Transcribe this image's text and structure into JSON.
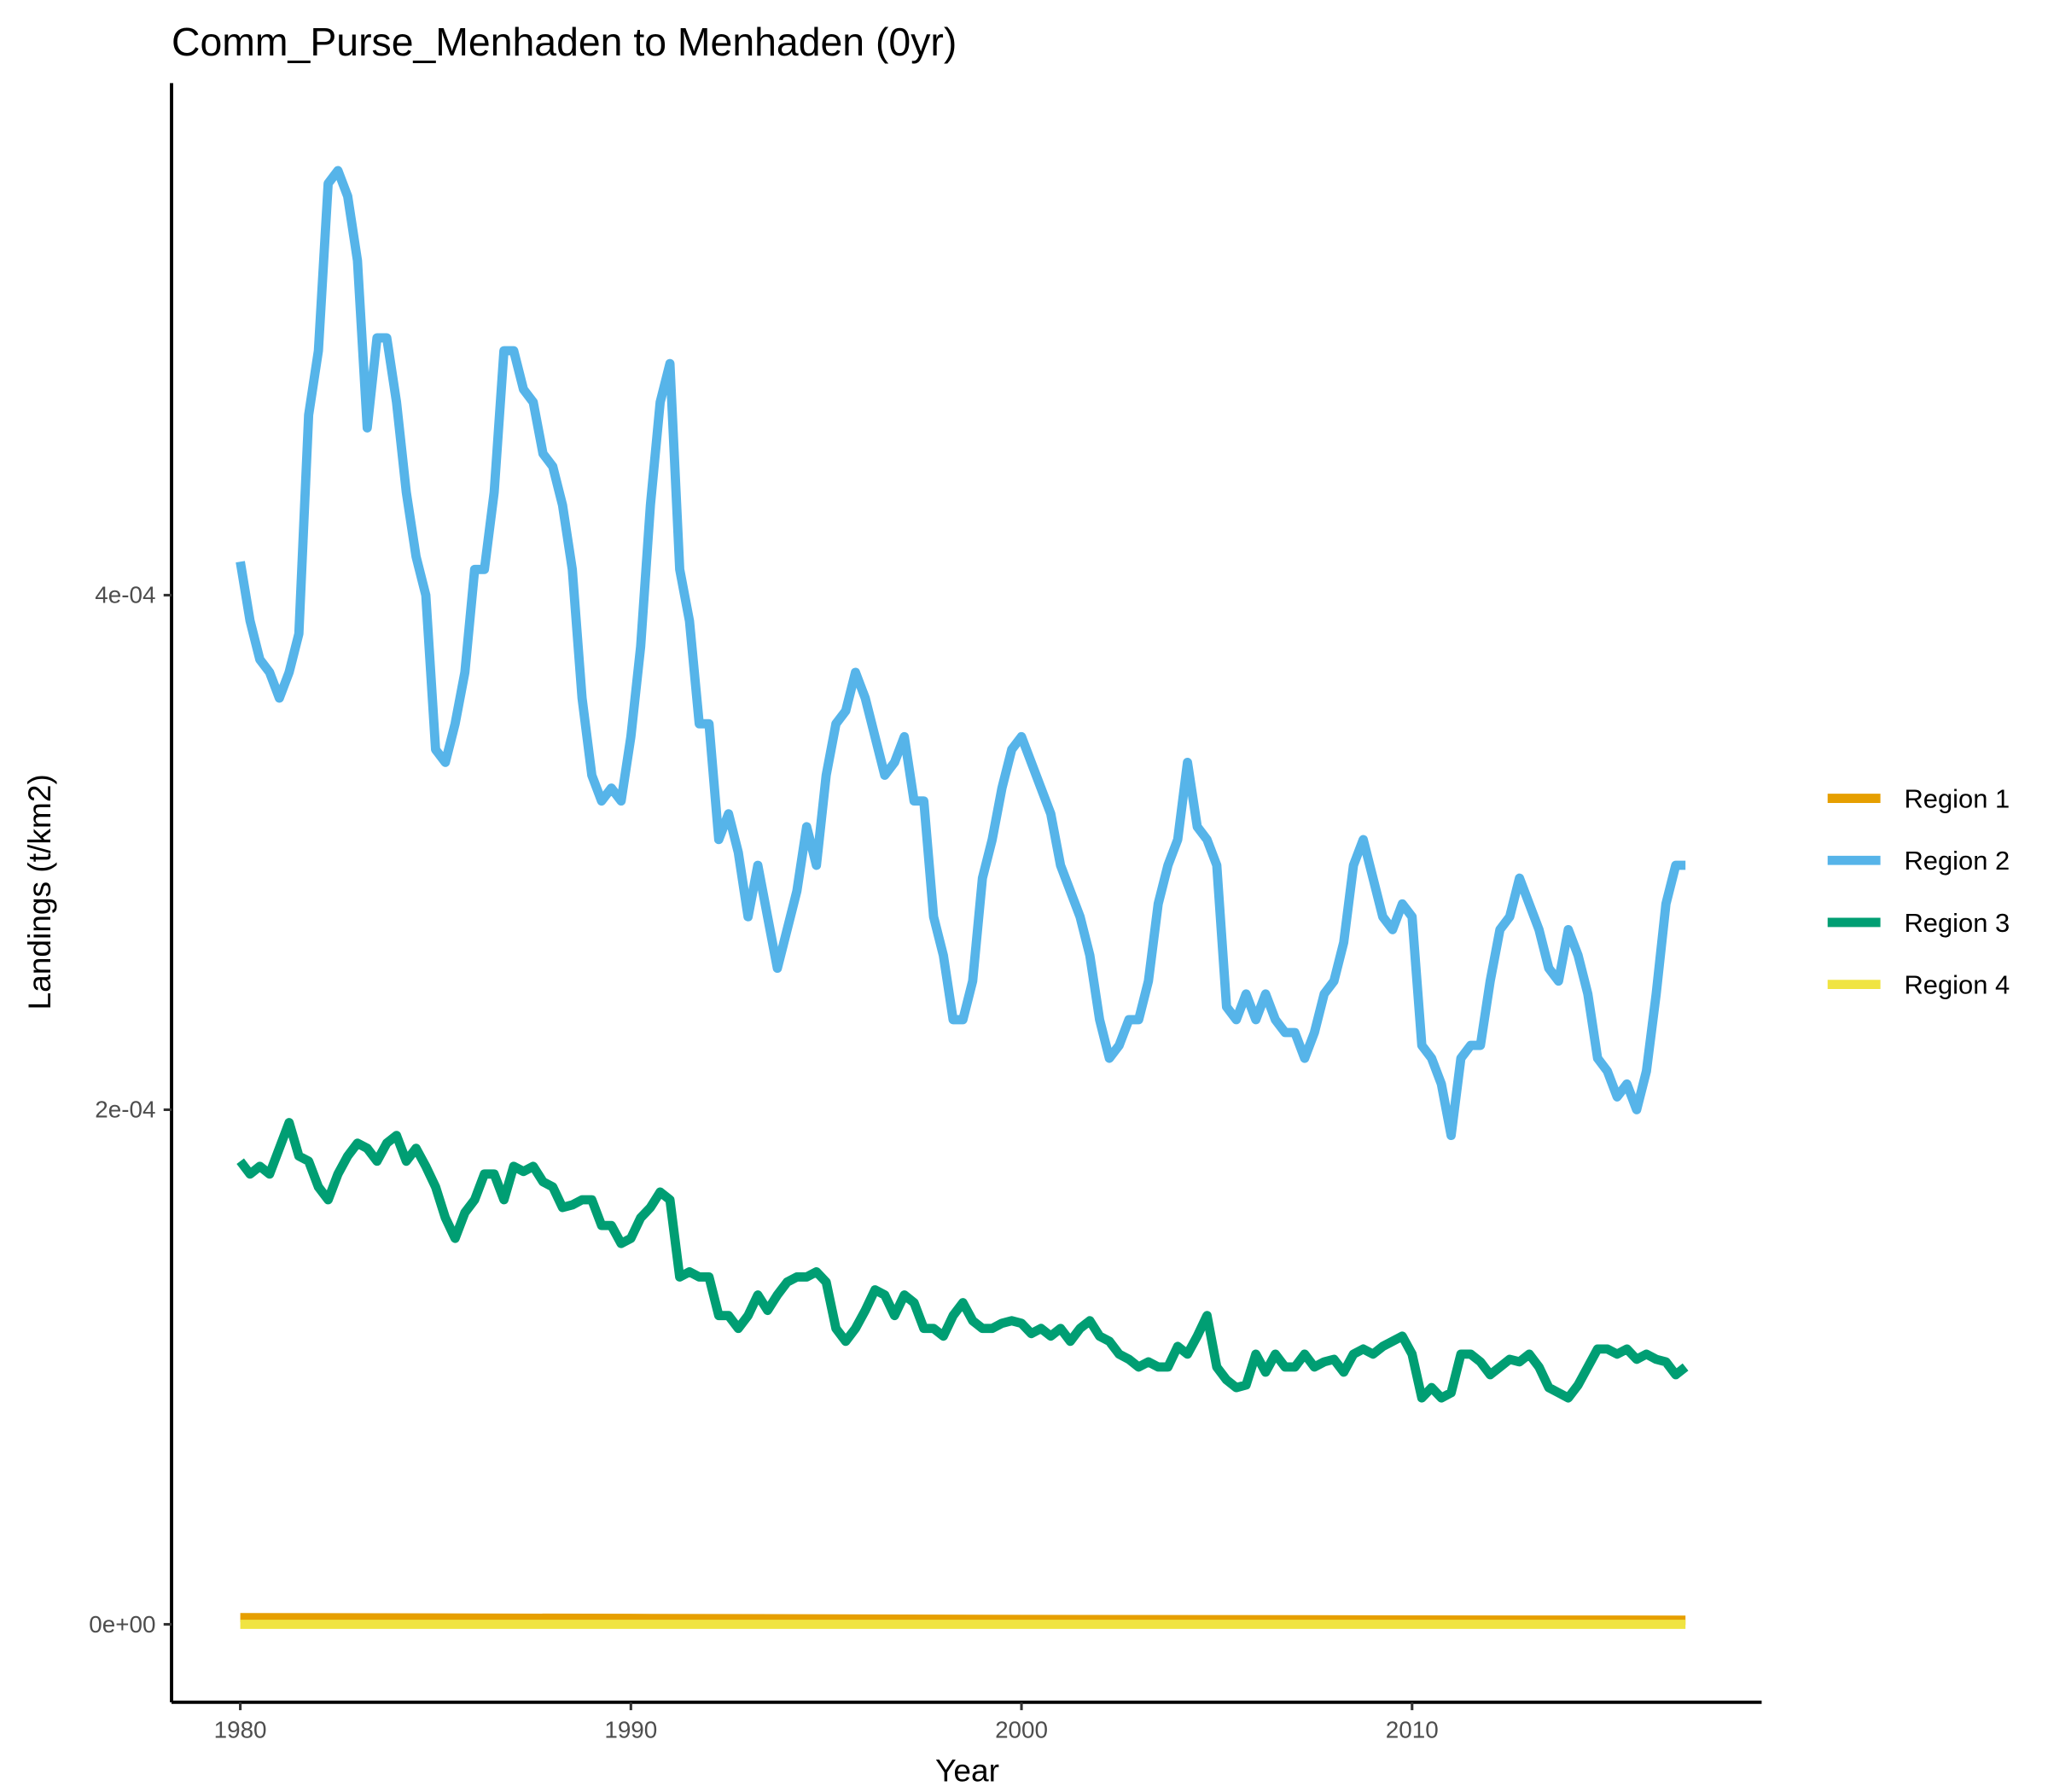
{
  "chart_data": {
    "type": "line",
    "title": "Comm_Purse_Menhaden to Menhaden (0yr)",
    "x_label": "Year",
    "y_label": "Landings (t/km2)",
    "xlim": [
      1978.24,
      2018.95
    ],
    "ylim": [
      -3.03e-05,
      0.000599
    ],
    "xticks": [
      1980,
      1990,
      2000,
      2010
    ],
    "yticks": [
      {
        "value": 0,
        "label": "0e+00"
      },
      {
        "value": 0.0002,
        "label": "2e-04"
      },
      {
        "value": 0.0004,
        "label": "4e-04"
      }
    ],
    "legend": "right",
    "x": [
      1980,
      1980.25,
      1980.5,
      1980.75,
      1981,
      1981.25,
      1981.5,
      1981.75,
      1982,
      1982.25,
      1982.5,
      1982.75,
      1983,
      1983.25,
      1983.5,
      1983.75,
      1984,
      1984.25,
      1984.5,
      1984.75,
      1985,
      1985.25,
      1985.5,
      1985.75,
      1986,
      1986.25,
      1986.5,
      1986.75,
      1987,
      1987.25,
      1987.5,
      1987.75,
      1988,
      1988.25,
      1988.5,
      1988.75,
      1989,
      1989.25,
      1989.5,
      1989.75,
      1990,
      1990.25,
      1990.5,
      1990.75,
      1991,
      1991.25,
      1991.5,
      1991.75,
      1992,
      1992.25,
      1992.5,
      1992.75,
      1993,
      1993.25,
      1993.5,
      1993.75,
      1994,
      1994.25,
      1994.5,
      1994.75,
      1995,
      1995.25,
      1995.5,
      1995.75,
      1996,
      1996.25,
      1996.5,
      1996.75,
      1997,
      1997.25,
      1997.5,
      1997.75,
      1998,
      1998.25,
      1998.5,
      1998.75,
      1999,
      1999.25,
      1999.5,
      1999.75,
      2000,
      2000.25,
      2000.5,
      2000.75,
      2001,
      2001.25,
      2001.5,
      2001.75,
      2002,
      2002.25,
      2002.5,
      2002.75,
      2003,
      2003.25,
      2003.5,
      2003.75,
      2004,
      2004.25,
      2004.5,
      2004.75,
      2005,
      2005.25,
      2005.5,
      2005.75,
      2006,
      2006.25,
      2006.5,
      2006.75,
      2007,
      2007.25,
      2007.5,
      2007.75,
      2008,
      2008.25,
      2008.5,
      2008.75,
      2009,
      2009.25,
      2009.5,
      2009.75,
      2010,
      2010.25,
      2010.5,
      2010.75,
      2011,
      2011.25,
      2011.5,
      2011.75,
      2012,
      2012.25,
      2012.5,
      2012.75,
      2013,
      2013.25,
      2013.5,
      2013.75,
      2014,
      2014.25,
      2014.5,
      2014.75,
      2015,
      2015.25,
      2015.5,
      2015.75,
      2016,
      2016.25,
      2016.5,
      2016.75,
      2017
    ],
    "series": [
      {
        "name": "Region 1",
        "color": "#E69F00",
        "x": [
          1980,
          1990,
          2000,
          2010,
          2017
        ],
        "values": [
          2.6e-06,
          2.3e-06,
          1.9e-06,
          1.7e-06,
          1.6e-06
        ]
      },
      {
        "name": "Region 2",
        "color": "#56B4E9",
        "values": [
          0.000413,
          0.00039,
          0.000375,
          0.00037,
          0.00036,
          0.00037,
          0.000385,
          0.00047,
          0.000495,
          0.00056,
          0.000565,
          0.000555,
          0.00053,
          0.000465,
          0.0005,
          0.0005,
          0.000475,
          0.00044,
          0.000415,
          0.0004,
          0.00034,
          0.000335,
          0.00035,
          0.00037,
          0.00041,
          0.00041,
          0.00044,
          0.000495,
          0.000495,
          0.00048,
          0.000475,
          0.000455,
          0.00045,
          0.000435,
          0.00041,
          0.00036,
          0.00033,
          0.00032,
          0.000325,
          0.00032,
          0.000345,
          0.00038,
          0.000435,
          0.000475,
          0.00049,
          0.00041,
          0.00039,
          0.00035,
          0.00035,
          0.000305,
          0.000315,
          0.0003,
          0.000275,
          0.000295,
          0.000275,
          0.000255,
          0.00027,
          0.000285,
          0.00031,
          0.000295,
          0.00033,
          0.00035,
          0.000355,
          0.00037,
          0.00036,
          0.000345,
          0.00033,
          0.000335,
          0.000345,
          0.00032,
          0.00032,
          0.000275,
          0.00026,
          0.000235,
          0.000235,
          0.00025,
          0.00029,
          0.000305,
          0.000325,
          0.00034,
          0.000345,
          0.000335,
          0.000325,
          0.000315,
          0.000295,
          0.000285,
          0.000275,
          0.00026,
          0.000235,
          0.00022,
          0.000225,
          0.000235,
          0.000235,
          0.00025,
          0.00028,
          0.000295,
          0.000305,
          0.000335,
          0.00031,
          0.000305,
          0.000295,
          0.00024,
          0.000235,
          0.000245,
          0.000235,
          0.000245,
          0.000235,
          0.00023,
          0.00023,
          0.00022,
          0.00023,
          0.000245,
          0.00025,
          0.000265,
          0.000295,
          0.000305,
          0.00029,
          0.000275,
          0.00027,
          0.00028,
          0.000275,
          0.000225,
          0.00022,
          0.00021,
          0.00019,
          0.00022,
          0.000225,
          0.000225,
          0.00025,
          0.00027,
          0.000275,
          0.00029,
          0.00028,
          0.00027,
          0.000255,
          0.00025,
          0.00027,
          0.00026,
          0.000245,
          0.00022,
          0.000215,
          0.000205,
          0.00021,
          0.0002,
          0.000215,
          0.000245,
          0.00028,
          0.000295,
          0.000295
        ]
      },
      {
        "name": "Region 3",
        "color": "#009E73",
        "values": [
          0.00018,
          0.000175,
          0.000178,
          0.000175,
          0.000185,
          0.000195,
          0.000182,
          0.00018,
          0.00017,
          0.000165,
          0.000175,
          0.000182,
          0.000187,
          0.000185,
          0.00018,
          0.000187,
          0.00019,
          0.00018,
          0.000185,
          0.000178,
          0.00017,
          0.000158,
          0.00015,
          0.00016,
          0.000165,
          0.000175,
          0.000175,
          0.000165,
          0.000178,
          0.000176,
          0.000178,
          0.000172,
          0.00017,
          0.000162,
          0.000163,
          0.000165,
          0.000165,
          0.000155,
          0.000155,
          0.000148,
          0.00015,
          0.000158,
          0.000162,
          0.000168,
          0.000165,
          0.000135,
          0.000137,
          0.000135,
          0.000135,
          0.00012,
          0.00012,
          0.000115,
          0.00012,
          0.000128,
          0.000122,
          0.000128,
          0.000133,
          0.000135,
          0.000135,
          0.000137,
          0.000133,
          0.000115,
          0.00011,
          0.000115,
          0.000122,
          0.00013,
          0.000128,
          0.00012,
          0.000128,
          0.000125,
          0.000115,
          0.000115,
          0.000112,
          0.00012,
          0.000125,
          0.000118,
          0.000115,
          0.000115,
          0.000117,
          0.000118,
          0.000117,
          0.000113,
          0.000115,
          0.000112,
          0.000115,
          0.00011,
          0.000115,
          0.000118,
          0.000112,
          0.00011,
          0.000105,
          0.000103,
          0.0001,
          0.000102,
          0.0001,
          0.0001,
          0.000108,
          0.000105,
          0.000112,
          0.00012,
          0.0001,
          9.5e-05,
          9.2e-05,
          9.3e-05,
          0.000105,
          9.8e-05,
          0.000105,
          0.0001,
          0.0001,
          0.000105,
          0.0001,
          0.000102,
          0.000103,
          9.8e-05,
          0.000105,
          0.000107,
          0.000105,
          0.000108,
          0.00011,
          0.000112,
          0.000105,
          8.8e-05,
          9.2e-05,
          8.8e-05,
          9e-05,
          0.000105,
          0.000105,
          0.000102,
          9.7e-05,
          0.0001,
          0.000103,
          0.000102,
          0.000105,
          0.0001,
          9.2e-05,
          9e-05,
          8.8e-05,
          9.3e-05,
          0.0001,
          0.000107,
          0.000107,
          0.000105,
          0.000107,
          0.000103,
          0.000105,
          0.000103,
          0.000102,
          9.7e-05,
          0.0001
        ]
      },
      {
        "name": "Region 4",
        "color": "#F0E442",
        "x": [
          1980,
          2017
        ],
        "values": [
          0,
          0
        ]
      }
    ]
  }
}
